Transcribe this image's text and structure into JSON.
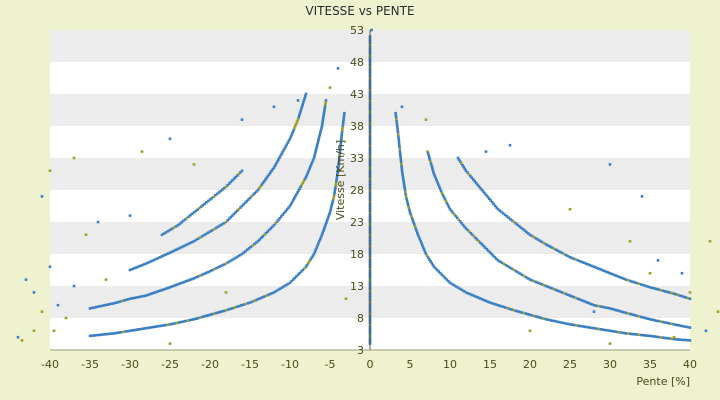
{
  "chart_data": {
    "type": "scatter",
    "title": "VITESSE vs PENTE",
    "xlabel": "Pente [%]",
    "ylabel": "Vitesse [Km/h]",
    "xlim": [
      -40,
      40
    ],
    "ylim": [
      3,
      53
    ],
    "xticks": [
      -40,
      -35,
      -30,
      -25,
      -20,
      -15,
      -10,
      -5,
      0,
      5,
      10,
      15,
      20,
      25,
      30,
      35,
      40
    ],
    "yticks": [
      3,
      8,
      13,
      18,
      23,
      28,
      33,
      38,
      43,
      48,
      53
    ],
    "grid": "horizontal alternating bands",
    "legend": "none",
    "colors": {
      "series_main": "#3b7fc4",
      "series_alt": "#9aa02a",
      "band": "#ececec",
      "plot_bg": "#ffffff",
      "background": "#eef2cf"
    },
    "series": [
      {
        "color": "#3b7fc4",
        "curves": [
          {
            "x": [
              3.2,
              3.5,
              4,
              4.5,
              5,
              6,
              7,
              8,
              10,
              12,
              15,
              18,
              20,
              22,
              25,
              28,
              30,
              32,
              35,
              38,
              40
            ],
            "y": [
              40,
              37,
              31,
              27,
              24.5,
              21,
              18,
              16,
              13.5,
              12,
              10.4,
              9.2,
              8.5,
              7.8,
              7,
              6.4,
              6,
              5.6,
              5.2,
              4.7,
              4.5
            ]
          },
          {
            "x": [
              7.2,
              8,
              9,
              10,
              12,
              14,
              16,
              18,
              20,
              22,
              25,
              28,
              30,
              32,
              35,
              38,
              40
            ],
            "y": [
              34,
              30.5,
              27.5,
              25,
              22,
              19.5,
              17,
              15.5,
              14,
              13,
              11.5,
              10,
              9.5,
              8.8,
              7.8,
              7,
              6.5
            ]
          },
          {
            "x": [
              11,
              12,
              14,
              16,
              18,
              20,
              22,
              25,
              28,
              30,
              32,
              35,
              38,
              40
            ],
            "y": [
              33,
              31,
              28,
              25,
              23,
              21,
              19.5,
              17.5,
              16,
              15,
              14,
              12.8,
              11.8,
              11
            ]
          },
          {
            "x": [
              -3.2,
              -3.5,
              -4,
              -4.5,
              -5,
              -6,
              -7,
              -8,
              -10,
              -12,
              -15,
              -18,
              -20,
              -22,
              -25,
              -28,
              -30,
              -32,
              -35
            ],
            "y": [
              40,
              37,
              31,
              27,
              24.5,
              21,
              18,
              16,
              13.5,
              12,
              10.4,
              9.2,
              8.5,
              7.8,
              7,
              6.4,
              6,
              5.6,
              5.2
            ]
          },
          {
            "x": [
              -5.5,
              -6,
              -7,
              -8,
              -10,
              -12,
              -14,
              -16,
              -18,
              -20,
              -22,
              -25,
              -28,
              -30,
              -32,
              -35
            ],
            "y": [
              42,
              38,
              33,
              30,
              25.5,
              22.5,
              20,
              18,
              16.5,
              15.3,
              14.2,
              12.8,
              11.5,
              11,
              10.3,
              9.5
            ]
          },
          {
            "x": [
              -8,
              -9,
              -10,
              -12,
              -14,
              -16,
              -18,
              -20,
              -22,
              -25,
              -28,
              -30
            ],
            "y": [
              43,
              39,
              36,
              31.5,
              28,
              25.5,
              23,
              21.5,
              20,
              18.2,
              16.5,
              15.5
            ]
          },
          {
            "x": [
              -16,
              -18,
              -20,
              -22,
              -24,
              -26
            ],
            "y": [
              31,
              28.5,
              26.5,
              24.5,
              22.5,
              21
            ]
          }
        ]
      },
      {
        "color": "#9aa02a",
        "points": [
          {
            "x": -43.5,
            "y": 4.5
          },
          {
            "x": -42,
            "y": 6
          },
          {
            "x": -41,
            "y": 9
          },
          {
            "x": -40,
            "y": 31
          },
          {
            "x": -39.5,
            "y": 6
          },
          {
            "x": -38,
            "y": 8
          },
          {
            "x": -37,
            "y": 33
          },
          {
            "x": -35.5,
            "y": 21
          },
          {
            "x": -33,
            "y": 14
          },
          {
            "x": -28.5,
            "y": 34
          },
          {
            "x": -25,
            "y": 4
          },
          {
            "x": -22,
            "y": 32
          },
          {
            "x": -18,
            "y": 12
          },
          {
            "x": -3,
            "y": 11
          },
          {
            "x": -5,
            "y": 44
          },
          {
            "x": 7,
            "y": 39
          },
          {
            "x": 20,
            "y": 6
          },
          {
            "x": 25,
            "y": 25
          },
          {
            "x": 30,
            "y": 4
          },
          {
            "x": 32.5,
            "y": 20
          },
          {
            "x": 35,
            "y": 15
          },
          {
            "x": 38,
            "y": 5
          },
          {
            "x": 40,
            "y": 12
          },
          {
            "x": 42.5,
            "y": 20
          },
          {
            "x": 43.5,
            "y": 9
          }
        ]
      },
      {
        "color": "#3b7fc4",
        "points": [
          {
            "x": -44,
            "y": 5
          },
          {
            "x": -43,
            "y": 14
          },
          {
            "x": -42,
            "y": 12
          },
          {
            "x": -41,
            "y": 27
          },
          {
            "x": -40,
            "y": 16
          },
          {
            "x": -39,
            "y": 10
          },
          {
            "x": -37,
            "y": 13
          },
          {
            "x": -34,
            "y": 23
          },
          {
            "x": -30,
            "y": 24
          },
          {
            "x": -25,
            "y": 36
          },
          {
            "x": -16,
            "y": 39
          },
          {
            "x": -12,
            "y": 41
          },
          {
            "x": -9,
            "y": 42
          },
          {
            "x": -4,
            "y": 47
          },
          {
            "x": 0.2,
            "y": 53
          },
          {
            "x": 4,
            "y": 41
          },
          {
            "x": 14.5,
            "y": 34
          },
          {
            "x": 17.5,
            "y": 35
          },
          {
            "x": 28,
            "y": 9
          },
          {
            "x": 30,
            "y": 32
          },
          {
            "x": 34,
            "y": 27
          },
          {
            "x": 36,
            "y": 17
          },
          {
            "x": 39,
            "y": 15
          },
          {
            "x": 42,
            "y": 6
          },
          {
            "x": 44,
            "y": 14
          }
        ]
      }
    ]
  }
}
